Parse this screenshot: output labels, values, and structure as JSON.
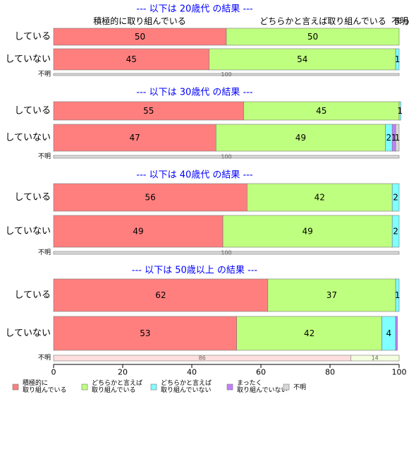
{
  "chart_data": {
    "type": "bar",
    "orientation": "horizontal",
    "stacked": true,
    "xlim": [
      0,
      100
    ],
    "x_ticks": [
      "0",
      "20",
      "40",
      "60",
      "80",
      "100"
    ],
    "column_headers": [
      "積極的に取り組んでいる",
      "どちらかと言えば取り組んでいる",
      "不明",
      "まったく"
    ],
    "legend": {
      "position": "bottom",
      "items": [
        {
          "label": "積極的に\n取り組んでいる",
          "color": "#ff7f7f"
        },
        {
          "label": "どちらかと言えば\n取り組んでいる",
          "color": "#bfff7f"
        },
        {
          "label": "どちらかと言えば\n取り組んでいない",
          "color": "#7fffff"
        },
        {
          "label": "まったく\n取り組んでいない",
          "color": "#bf7fff"
        },
        {
          "label": "不明",
          "color": "#d9d9d9"
        }
      ]
    },
    "panels": [
      {
        "title": "--- 以下は 20歳代 の結果 ---",
        "rows": [
          {
            "label": "している",
            "values": [
              50,
              50,
              0,
              0,
              0
            ],
            "value_labels": [
              "50",
              "50",
              "",
              "",
              ""
            ]
          },
          {
            "label": "していない",
            "values": [
              45,
              54,
              1,
              0,
              0
            ],
            "value_labels": [
              "45",
              "54",
              "1",
              "",
              ""
            ]
          },
          {
            "label": "不明",
            "values": [
              0,
              0,
              0,
              0,
              100
            ],
            "value_labels": [
              "",
              "",
              "",
              "",
              "100"
            ]
          }
        ]
      },
      {
        "title": "--- 以下は 30歳代 の結果 ---",
        "rows": [
          {
            "label": "している",
            "values": [
              55,
              45,
              0.5,
              0,
              0
            ],
            "value_labels": [
              "55",
              "45",
              "1",
              "",
              ""
            ]
          },
          {
            "label": "していない",
            "values": [
              47,
              49,
              2,
              1,
              1
            ],
            "value_labels": [
              "47",
              "49",
              "2",
              "1",
              "1"
            ]
          },
          {
            "label": "不明",
            "values": [
              0,
              0,
              0,
              0,
              100
            ],
            "value_labels": [
              "",
              "",
              "",
              "",
              "100"
            ]
          }
        ]
      },
      {
        "title": "--- 以下は 40歳代 の結果 ---",
        "rows": [
          {
            "label": "している",
            "values": [
              56,
              42,
              2,
              0,
              0
            ],
            "value_labels": [
              "56",
              "42",
              "2",
              "",
              ""
            ]
          },
          {
            "label": "していない",
            "values": [
              49,
              49,
              2,
              0,
              0
            ],
            "value_labels": [
              "49",
              "49",
              "2",
              "",
              ""
            ]
          },
          {
            "label": "不明",
            "values": [
              0,
              0,
              0,
              0,
              100
            ],
            "value_labels": [
              "",
              "",
              "",
              "",
              "100"
            ]
          }
        ]
      },
      {
        "title": "--- 以下は 50歳以上 の結果 ---",
        "rows": [
          {
            "label": "している",
            "values": [
              62,
              37,
              1,
              0,
              0
            ],
            "value_labels": [
              "62",
              "37",
              "1",
              "",
              ""
            ]
          },
          {
            "label": "していない",
            "values": [
              53,
              42,
              4,
              0.5,
              0
            ],
            "value_labels": [
              "53",
              "42",
              "4",
              "",
              ""
            ]
          },
          {
            "label": "不明",
            "values": [
              0,
              86,
              14,
              0,
              0
            ],
            "value_labels": [
              "",
              "86",
              "14",
              "",
              ""
            ],
            "colors": [
              "#ff7f7f",
              "#ffdede",
              "#f3ffde",
              "#7fffff",
              "#bf7fff"
            ]
          }
        ]
      }
    ]
  }
}
